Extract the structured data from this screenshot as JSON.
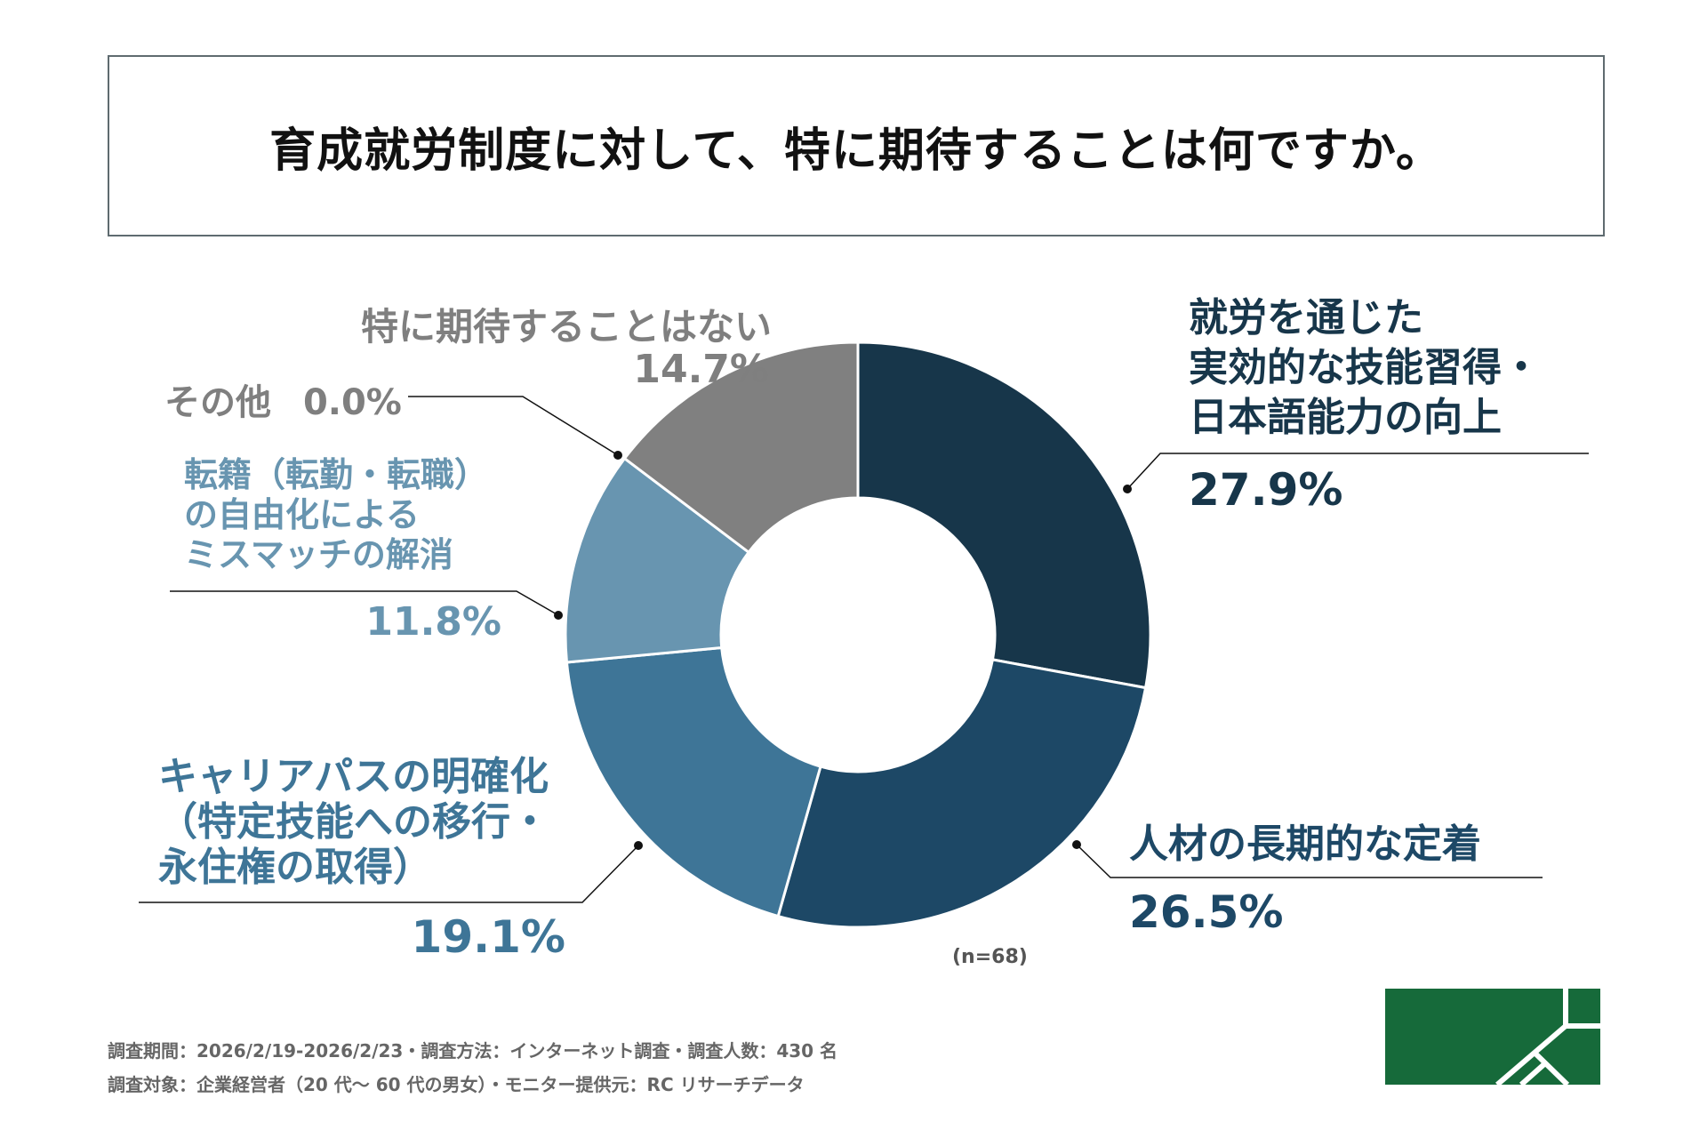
{
  "chart_data": {
    "type": "pie",
    "donut": true,
    "title": "育成就労制度に対して、特に期待することは何ですか。",
    "note": "(n=68)",
    "start_angle": "top, clockwise",
    "slices": [
      {
        "label_lines": [
          "就労を通じた",
          "実効的な技能習得・",
          "日本語能力の向上"
        ],
        "value": 27.9,
        "value_label": "27.9%",
        "color": "#17364a",
        "text_color": "#17364a"
      },
      {
        "label_lines": [
          "人材の長期的な定着"
        ],
        "value": 26.5,
        "value_label": "26.5%",
        "color": "#1d4866",
        "text_color": "#1d4866"
      },
      {
        "label_lines": [
          "キャリアパスの明確化",
          "（特定技能への移行・",
          "永住権の取得）"
        ],
        "value": 19.1,
        "value_label": "19.1%",
        "color": "#3e7597",
        "text_color": "#3e7597"
      },
      {
        "label_lines": [
          "転籍（転勤・転職）",
          "の自由化による",
          "ミスマッチの解消"
        ],
        "value": 11.8,
        "value_label": "11.8%",
        "color": "#6895b0",
        "text_color": "#6895b0"
      },
      {
        "label_lines": [
          "その他"
        ],
        "value": 0.0,
        "value_label": "0.0%",
        "color": "#9a9a9a",
        "text_color": "#7f7f7f"
      },
      {
        "label_lines": [
          "特に期待することはない"
        ],
        "value": 14.7,
        "value_label": "14.7%",
        "color": "#808080",
        "text_color": "#7f7f7f"
      }
    ]
  },
  "footer": {
    "line1": "調査期間：2026/2/19-2026/2/23・調査方法：インターネット調査・調査人数：430 名",
    "line2": "調査対象：企業経営者（20 代～ 60 代の男女）・モニター提供元：RC リサーチデータ"
  },
  "logo": {
    "color": "#166a3a"
  }
}
